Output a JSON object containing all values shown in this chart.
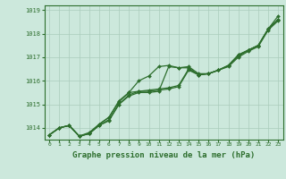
{
  "xlabel": "Graphe pression niveau de la mer (hPa)",
  "bg_color": "#cce8dc",
  "grid_color": "#aaccbb",
  "line_color": "#2d6e2d",
  "xlim": [
    -0.5,
    23.5
  ],
  "ylim": [
    1013.5,
    1019.2
  ],
  "yticks": [
    1014,
    1015,
    1016,
    1017,
    1018,
    1019
  ],
  "xticks": [
    0,
    1,
    2,
    3,
    4,
    5,
    6,
    7,
    8,
    9,
    10,
    11,
    12,
    13,
    14,
    15,
    16,
    17,
    18,
    19,
    20,
    21,
    22,
    23
  ],
  "series": [
    [
      1013.7,
      1014.0,
      1014.1,
      1013.65,
      1013.75,
      1014.1,
      1014.3,
      1015.0,
      1015.35,
      1015.5,
      1015.5,
      1015.55,
      1016.6,
      1016.55,
      1016.55,
      1016.25,
      1016.3,
      1016.45,
      1016.6,
      1017.0,
      1017.25,
      1017.45,
      1018.15,
      1018.55
    ],
    [
      1013.7,
      1014.0,
      1014.1,
      1013.65,
      1013.8,
      1014.15,
      1014.45,
      1015.1,
      1015.5,
      1016.0,
      1016.2,
      1016.6,
      1016.65,
      1016.55,
      1016.6,
      1016.3,
      1016.3,
      1016.45,
      1016.65,
      1017.05,
      1017.3,
      1017.5,
      1018.2,
      1018.75
    ],
    [
      1013.7,
      1014.0,
      1014.1,
      1013.65,
      1013.75,
      1014.1,
      1014.35,
      1015.0,
      1015.4,
      1015.55,
      1015.55,
      1015.6,
      1015.65,
      1015.75,
      1016.45,
      1016.25,
      1016.3,
      1016.45,
      1016.65,
      1017.1,
      1017.3,
      1017.5,
      1018.2,
      1018.6
    ],
    [
      1013.7,
      1014.0,
      1014.1,
      1013.65,
      1013.75,
      1014.15,
      1014.45,
      1015.15,
      1015.5,
      1015.55,
      1015.6,
      1015.65,
      1015.7,
      1015.8,
      1016.5,
      1016.25,
      1016.3,
      1016.45,
      1016.65,
      1017.1,
      1017.3,
      1017.5,
      1018.2,
      1018.6
    ]
  ]
}
